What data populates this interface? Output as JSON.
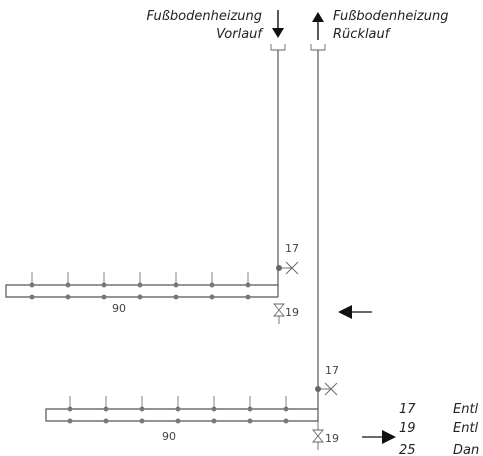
{
  "labels": {
    "supply": {
      "line1": "Fußbodenheizung",
      "line2": "Vorlauf"
    },
    "return": {
      "line1": "Fußbodenheizung",
      "line2": "Rücklauf"
    },
    "upper_manifold": {
      "vent_number": "17",
      "length": "90",
      "valve_number": "19"
    },
    "lower_manifold": {
      "vent_number": "17",
      "length": "90",
      "valve_number": "19"
    }
  },
  "legend": [
    {
      "number": "17",
      "text": "Entl"
    },
    {
      "number": "19",
      "text": "Entl"
    },
    {
      "number": "25",
      "text": "Dan"
    }
  ]
}
